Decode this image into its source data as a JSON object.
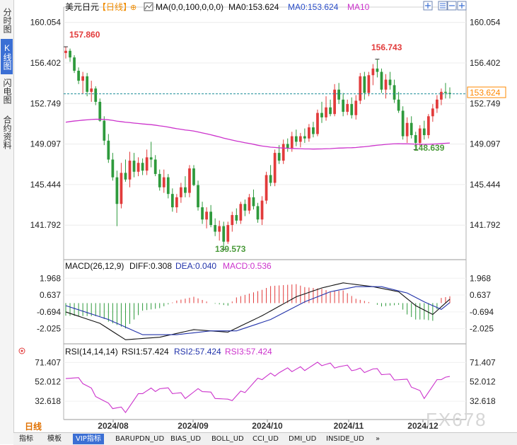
{
  "left_tabs": [
    "分时图",
    "K线图",
    "闪电图",
    "合约资料"
  ],
  "left_tab_active": 1,
  "header": {
    "symbol": "美元日元",
    "period": "【日线】",
    "ma_label": "MA(0,0,100,0,0,0)",
    "ma0_text": "MA0:153.624",
    "ma0_text2": "MA0:153.624",
    "ma10_text": "MA10"
  },
  "macd_header": {
    "name": "MACD(26,12,9)",
    "diff": "DIFF:0.308",
    "dea": "DEA:0.040",
    "macd": "MACD:0.536"
  },
  "rsi_header": {
    "name": "RSI(14,14,14)",
    "rsi1": "RSI1:57.424",
    "rsi2": "RSI2:57.424",
    "rsi3": "RSI3:57.424"
  },
  "current_price_label": "153.624",
  "annotations": {
    "high1": "157.860",
    "low1": "139.573",
    "high2": "156.743",
    "low2": "148.639"
  },
  "bottom_tabs": [
    "日线",
    "指标",
    "模板",
    "VIP指标",
    "BARUPDN_UD",
    "BIAS_UD",
    "BOLL_UD",
    "CCI_UD",
    "DMI_UD",
    "INSIDE_UD",
    "»"
  ],
  "bottom_tab_active": 3,
  "watermark": "FX678",
  "colors": {
    "up": "#e23b3b",
    "down": "#2e9a3c",
    "ma": "#cc33cc",
    "diff": "#111111",
    "dea": "#2233aa",
    "current": "#ff8800",
    "tab_blue": "#3b6fd4"
  },
  "chart_data": [
    {
      "type": "candlestick",
      "title": "美元日元 日线",
      "x_ticks": [
        "2024/08",
        "2024/09",
        "2024/10",
        "2024/11",
        "2024/12"
      ],
      "y_ticks": [
        160.054,
        156.402,
        152.749,
        149.097,
        145.444,
        141.792
      ],
      "ylim": [
        139.0,
        160.8
      ],
      "ohlc": [
        [
          157.3,
          157.9,
          156.8,
          157.5
        ],
        [
          157.5,
          157.7,
          156.5,
          156.9
        ],
        [
          156.9,
          157.1,
          155.5,
          155.7
        ],
        [
          155.7,
          156.0,
          154.5,
          154.8
        ],
        [
          154.8,
          155.6,
          153.6,
          155.2
        ],
        [
          155.2,
          155.5,
          153.4,
          153.8
        ],
        [
          153.8,
          154.8,
          152.9,
          154.1
        ],
        [
          154.1,
          154.3,
          152.6,
          152.9
        ],
        [
          152.9,
          153.2,
          151.1,
          151.2
        ],
        [
          151.2,
          151.6,
          149.0,
          149.4
        ],
        [
          149.4,
          150.0,
          147.4,
          147.7
        ],
        [
          147.7,
          148.3,
          145.8,
          146.1
        ],
        [
          146.1,
          146.7,
          141.7,
          143.7
        ],
        [
          143.7,
          147.4,
          143.3,
          146.5
        ],
        [
          146.5,
          147.7,
          145.7,
          145.9
        ],
        [
          145.9,
          148.4,
          145.2,
          147.6
        ],
        [
          147.6,
          148.3,
          146.1,
          146.6
        ],
        [
          146.6,
          147.9,
          146.2,
          147.4
        ],
        [
          147.4,
          147.8,
          146.3,
          146.7
        ],
        [
          146.7,
          148.6,
          146.3,
          147.9
        ],
        [
          147.9,
          149.3,
          147.0,
          147.7
        ],
        [
          147.7,
          148.1,
          146.2,
          146.4
        ],
        [
          146.4,
          146.8,
          144.9,
          145.2
        ],
        [
          145.2,
          146.8,
          144.7,
          146.1
        ],
        [
          146.1,
          146.4,
          144.2,
          144.6
        ],
        [
          144.6,
          145.1,
          143.0,
          143.4
        ],
        [
          143.4,
          144.6,
          142.9,
          144.3
        ],
        [
          144.3,
          145.6,
          143.8,
          145.2
        ],
        [
          145.2,
          146.2,
          144.3,
          144.7
        ],
        [
          144.7,
          147.2,
          144.3,
          146.9
        ],
        [
          146.9,
          147.2,
          145.3,
          145.4
        ],
        [
          145.4,
          145.8,
          143.1,
          143.4
        ],
        [
          143.4,
          143.9,
          141.9,
          142.3
        ],
        [
          142.3,
          143.4,
          141.5,
          143.0
        ],
        [
          143.0,
          143.6,
          141.6,
          141.8
        ],
        [
          141.8,
          142.4,
          140.8,
          141.2
        ],
        [
          141.2,
          142.2,
          140.4,
          141.7
        ],
        [
          141.7,
          142.1,
          139.6,
          140.3
        ],
        [
          140.3,
          142.1,
          140.1,
          141.8
        ],
        [
          141.8,
          143.0,
          141.2,
          142.7
        ],
        [
          142.7,
          143.3,
          141.9,
          142.2
        ],
        [
          142.2,
          143.9,
          141.9,
          143.7
        ],
        [
          143.7,
          144.1,
          142.6,
          143.1
        ],
        [
          143.1,
          144.6,
          142.8,
          144.3
        ],
        [
          144.3,
          145.0,
          143.2,
          143.5
        ],
        [
          143.5,
          143.8,
          142.0,
          142.3
        ],
        [
          142.3,
          144.4,
          141.8,
          144.0
        ],
        [
          144.0,
          146.6,
          143.7,
          146.3
        ],
        [
          146.3,
          147.2,
          145.3,
          145.6
        ],
        [
          145.6,
          148.6,
          145.3,
          148.3
        ],
        [
          148.3,
          149.0,
          147.3,
          147.6
        ],
        [
          147.6,
          149.5,
          147.3,
          149.1
        ],
        [
          149.1,
          149.6,
          148.4,
          148.7
        ],
        [
          148.7,
          150.2,
          148.4,
          149.8
        ],
        [
          149.8,
          150.4,
          148.9,
          149.3
        ],
        [
          149.3,
          150.1,
          148.8,
          149.8
        ],
        [
          149.8,
          150.5,
          149.2,
          149.6
        ],
        [
          149.6,
          150.9,
          149.3,
          150.6
        ],
        [
          150.6,
          151.1,
          149.7,
          150.0
        ],
        [
          150.0,
          152.2,
          149.8,
          151.9
        ],
        [
          151.9,
          152.9,
          151.0,
          151.5
        ],
        [
          151.5,
          153.4,
          151.2,
          152.4
        ],
        [
          152.4,
          153.1,
          151.6,
          151.8
        ],
        [
          151.8,
          154.5,
          151.6,
          154.0
        ],
        [
          154.0,
          154.6,
          152.7,
          153.1
        ],
        [
          153.1,
          153.7,
          151.6,
          152.0
        ],
        [
          152.0,
          153.1,
          151.7,
          152.7
        ],
        [
          152.7,
          153.3,
          151.4,
          151.7
        ],
        [
          151.7,
          153.5,
          151.3,
          153.0
        ],
        [
          153.0,
          155.5,
          152.7,
          155.2
        ],
        [
          155.2,
          155.6,
          153.1,
          153.7
        ],
        [
          153.7,
          155.6,
          153.4,
          155.3
        ],
        [
          155.3,
          156.3,
          154.4,
          155.9
        ],
        [
          155.9,
          156.7,
          155.1,
          155.6
        ],
        [
          155.6,
          155.9,
          153.7,
          154.0
        ],
        [
          154.0,
          155.4,
          153.2,
          154.9
        ],
        [
          154.9,
          155.6,
          154.0,
          154.4
        ],
        [
          154.4,
          154.9,
          152.8,
          153.1
        ],
        [
          153.1,
          153.8,
          151.9,
          152.1
        ],
        [
          152.1,
          152.5,
          149.5,
          149.8
        ],
        [
          149.8,
          151.5,
          149.2,
          151.0
        ],
        [
          151.0,
          151.6,
          149.6,
          149.9
        ],
        [
          149.9,
          150.2,
          148.6,
          149.2
        ],
        [
          149.2,
          150.8,
          148.9,
          150.5
        ],
        [
          150.5,
          151.2,
          149.5,
          149.9
        ],
        [
          149.9,
          151.8,
          149.6,
          151.6
        ],
        [
          151.6,
          152.7,
          151.1,
          152.3
        ],
        [
          152.3,
          153.5,
          151.9,
          153.1
        ],
        [
          153.1,
          154.1,
          152.6,
          153.8
        ],
        [
          153.8,
          154.6,
          153.2,
          153.7
        ],
        [
          153.7,
          154.2,
          153.2,
          153.6
        ]
      ]
    },
    {
      "type": "line",
      "title": "MACD(26,12,9)",
      "y_ticks": [
        1.968,
        0.637,
        -0.694,
        -2.025
      ],
      "ylim": [
        -3.0,
        2.6
      ],
      "series_names": [
        "DIFF",
        "DEA",
        "MACD"
      ],
      "diff_keypoints": [
        [
          0,
          -0.7
        ],
        [
          8,
          -1.6
        ],
        [
          14,
          -2.9
        ],
        [
          22,
          -2.7
        ],
        [
          30,
          -2.1
        ],
        [
          38,
          -2.3
        ],
        [
          46,
          -1.0
        ],
        [
          54,
          0.5
        ],
        [
          60,
          1.2
        ],
        [
          65,
          1.6
        ],
        [
          72,
          1.3
        ],
        [
          78,
          0.9
        ],
        [
          82,
          -0.2
        ],
        [
          86,
          -0.9
        ],
        [
          90,
          0.31
        ]
      ],
      "dea_keypoints": [
        [
          0,
          -0.2
        ],
        [
          10,
          -1.3
        ],
        [
          18,
          -2.5
        ],
        [
          26,
          -2.5
        ],
        [
          34,
          -2.2
        ],
        [
          40,
          -2.2
        ],
        [
          48,
          -1.3
        ],
        [
          56,
          0.1
        ],
        [
          62,
          0.9
        ],
        [
          68,
          1.3
        ],
        [
          74,
          1.3
        ],
        [
          80,
          0.8
        ],
        [
          84,
          0.1
        ],
        [
          88,
          -0.5
        ],
        [
          90,
          0.04
        ]
      ]
    },
    {
      "type": "line",
      "title": "RSI(14,14,14)",
      "y_ticks": [
        71.407,
        52.012,
        32.618
      ],
      "ylim": [
        15,
        78
      ],
      "keypoints": [
        [
          0,
          58
        ],
        [
          4,
          52
        ],
        [
          10,
          28
        ],
        [
          14,
          24
        ],
        [
          18,
          42
        ],
        [
          22,
          46
        ],
        [
          28,
          38
        ],
        [
          32,
          44
        ],
        [
          38,
          32
        ],
        [
          42,
          44
        ],
        [
          46,
          56
        ],
        [
          50,
          62
        ],
        [
          56,
          66
        ],
        [
          60,
          70
        ],
        [
          64,
          68
        ],
        [
          68,
          64
        ],
        [
          72,
          64
        ],
        [
          76,
          58
        ],
        [
          80,
          52
        ],
        [
          84,
          38
        ],
        [
          88,
          56
        ],
        [
          90,
          57.4
        ]
      ]
    }
  ]
}
